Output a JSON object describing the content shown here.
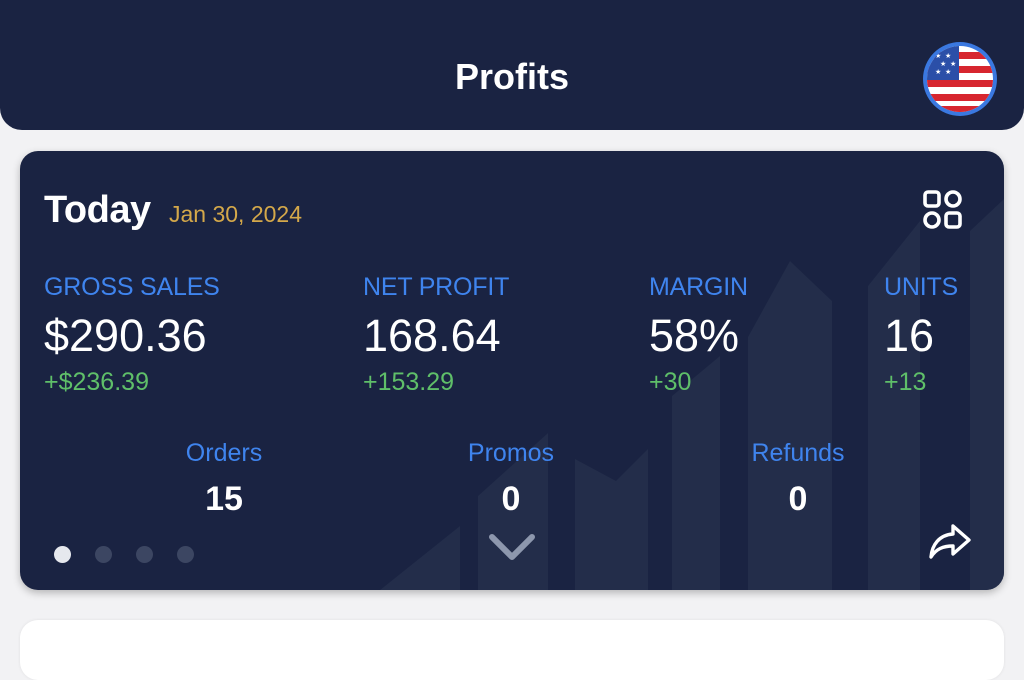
{
  "header": {
    "title": "Profits",
    "flag_icon": "us-flag-icon"
  },
  "card": {
    "title": "Today",
    "date": "Jan 30, 2024",
    "grid_icon": "grid-view-icon",
    "metrics": [
      {
        "label": "GROSS SALES",
        "value": "$290.36",
        "delta": "+$236.39"
      },
      {
        "label": "NET PROFIT",
        "value": "168.64",
        "delta": "+153.29"
      },
      {
        "label": "MARGIN",
        "value": "58%",
        "delta": "+30"
      },
      {
        "label": "UNITS",
        "value": "16",
        "delta": "+13"
      }
    ],
    "sub_metrics": [
      {
        "label": "Orders",
        "value": "15"
      },
      {
        "label": "Promos",
        "value": "0"
      },
      {
        "label": "Refunds",
        "value": "0"
      }
    ],
    "pager": {
      "pages": 4,
      "active": 1
    },
    "expand_icon": "chevron-down-icon",
    "share_icon": "share-icon"
  },
  "colors": {
    "navy": "#1a2342",
    "label_blue": "#3f84ee",
    "date_gold": "#d4a84a",
    "delta_green": "#5fbf69",
    "page_bg": "#f2f2f4"
  }
}
